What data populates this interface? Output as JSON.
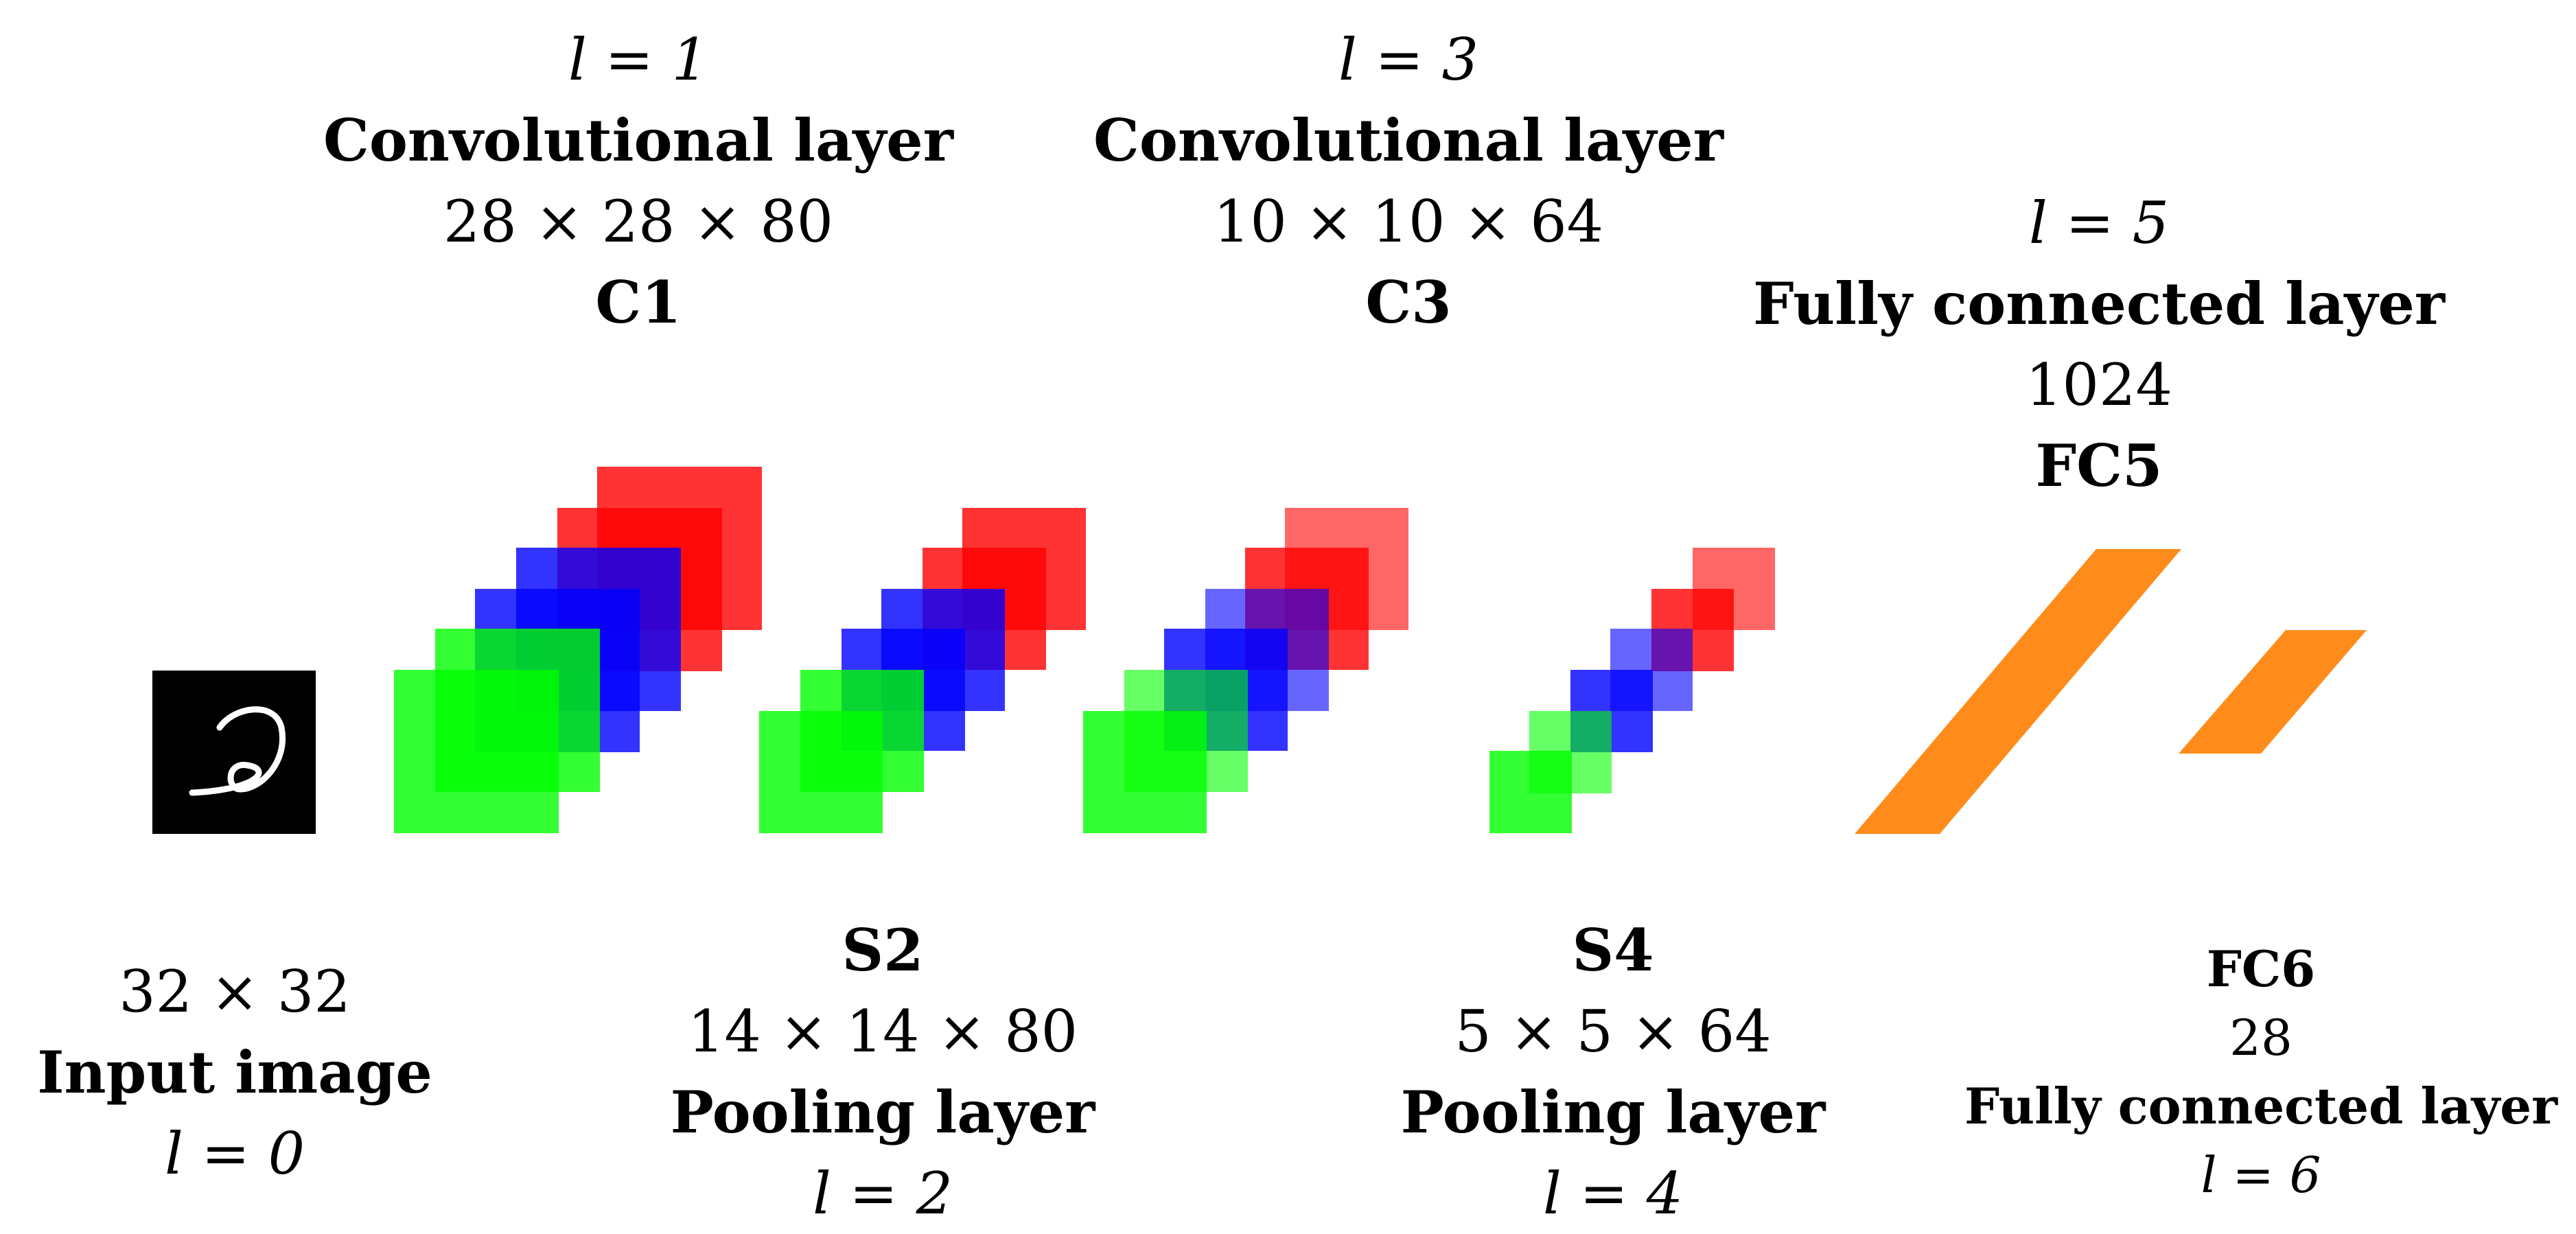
{
  "colors": {
    "red": "#ff0000",
    "blue": "#0000ff",
    "green": "#00ff00",
    "orange": "#ff8c1a",
    "input_bg": "#000000",
    "digit_stroke": "#ffffff"
  },
  "layers": {
    "input": {
      "size": "32 × 32",
      "name": "Input image",
      "index": "l = 0",
      "icon": "handwritten-digit-icon"
    },
    "c1": {
      "index": "l = 1",
      "type": "Convolutional layer",
      "size": "28 × 28 × 80",
      "name": "C1"
    },
    "s2": {
      "name": "S2",
      "size": "14 × 14 × 80",
      "type": "Pooling layer",
      "index": "l = 2"
    },
    "c3": {
      "index": "l = 3",
      "type": "Convolutional layer",
      "size": "10 × 10 × 64",
      "name": "C3"
    },
    "s4": {
      "name": "S4",
      "size": "5 × 5 × 64",
      "type": "Pooling layer",
      "index": "l = 4"
    },
    "fc5": {
      "index": "l = 5",
      "type": "Fully connected layer",
      "size": "1024",
      "name": "FC5"
    },
    "fc6": {
      "name": "FC6",
      "size": "28",
      "type": "Fully connected layer",
      "index": "l = 6"
    }
  }
}
